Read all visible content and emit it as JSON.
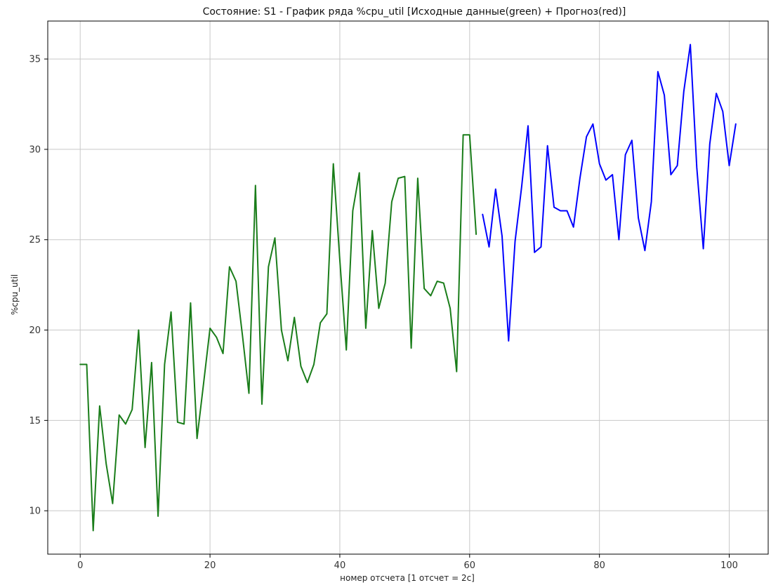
{
  "chart_data": {
    "type": "line",
    "title": "Состояние: S1 - График ряда %cpu_util [Исходные данные(green) + Прогноз(red)]",
    "xlabel": "номер отсчета [1 отсчет = 2с]",
    "ylabel": "%cpu_util",
    "xlim": [
      -5,
      106
    ],
    "ylim": [
      7.6,
      37.1
    ],
    "grid": true,
    "x_ticks": [
      0,
      20,
      40,
      60,
      80,
      100
    ],
    "y_ticks": [
      10,
      15,
      20,
      25,
      30,
      35
    ],
    "series": [
      {
        "color": "#1a7d1a",
        "x_start": 0,
        "values": [
          18.1,
          18.1,
          8.9,
          15.8,
          12.6,
          10.4,
          15.3,
          14.8,
          15.6,
          20.0,
          13.5,
          18.2,
          9.7,
          18.1,
          21.0,
          14.9,
          14.8,
          21.5,
          14.0,
          17.0,
          20.1,
          19.6,
          18.7,
          23.5,
          22.7,
          19.7,
          16.5,
          28.0,
          15.9,
          23.5,
          25.1,
          20.0,
          18.3,
          20.7,
          18.0,
          17.1,
          18.1,
          20.4,
          20.9,
          29.2,
          23.9,
          18.9,
          26.6,
          28.7,
          20.1,
          25.5,
          21.2,
          22.6,
          27.1,
          28.4,
          28.5,
          19.0,
          28.4,
          22.3,
          21.9,
          22.7,
          22.6,
          21.2,
          17.7,
          30.8,
          30.8,
          25.3
        ]
      },
      {
        "color": "#0000ff",
        "x_start": 62,
        "values": [
          26.4,
          24.6,
          27.8,
          25.2,
          19.4,
          24.9,
          27.9,
          31.3,
          24.3,
          24.6,
          30.2,
          26.8,
          26.6,
          26.6,
          25.7,
          28.4,
          30.7,
          31.4,
          29.2,
          28.3,
          28.6,
          25.0,
          29.7,
          30.5,
          26.2,
          24.4,
          27.1,
          34.3,
          33.0,
          28.6,
          29.1,
          33.2,
          35.8,
          29.0,
          24.5,
          30.3,
          33.1,
          32.1,
          29.1,
          31.4
        ]
      }
    ]
  }
}
